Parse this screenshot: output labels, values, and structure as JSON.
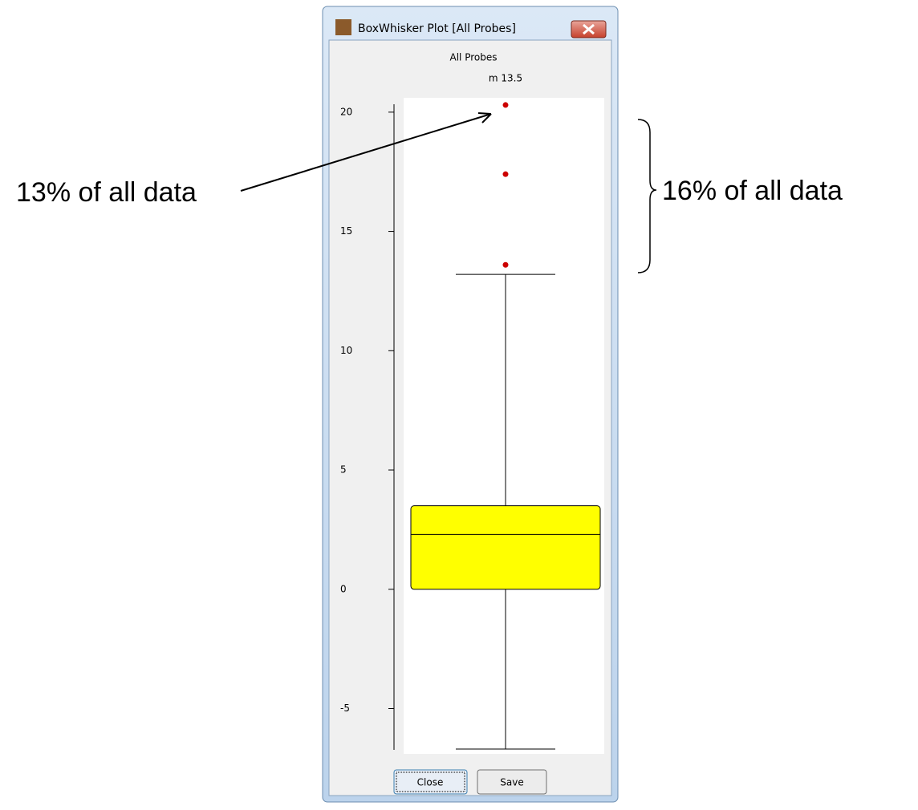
{
  "window": {
    "title": "BoxWhisker Plot [All Probes]",
    "buttons": [
      "Close",
      "Save"
    ]
  },
  "chart_data": {
    "type": "box",
    "title": "All Probes",
    "subtitle": "m 13.5",
    "ylim": [
      -6.9,
      20.6
    ],
    "yticks": [
      -5,
      0,
      5,
      10,
      15,
      20
    ],
    "boxes": [
      {
        "whisker_low": -6.7,
        "q1": 0,
        "median": 2.3,
        "q3": 3.5,
        "whisker_high": 13.2,
        "outliers": [
          13.6,
          17.4,
          20.3
        ],
        "color": "#ffff00",
        "outlier_color": "#cc0000"
      }
    ],
    "annotations": [
      "13% of all data",
      "16% of all data"
    ]
  }
}
